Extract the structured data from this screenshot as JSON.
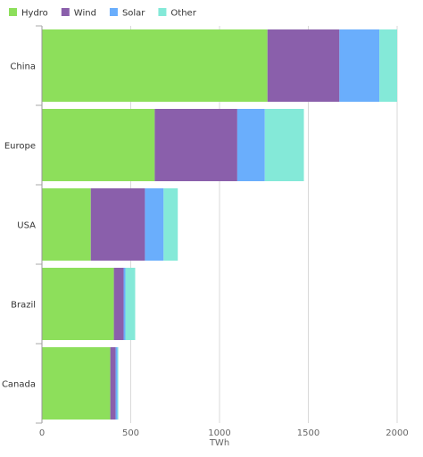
{
  "chart_data": {
    "type": "bar",
    "orientation": "horizontal",
    "stacked": true,
    "categories": [
      "China",
      "Europe",
      "USA",
      "Brazil",
      "Canada"
    ],
    "series": [
      {
        "name": "Hydro",
        "color": "#8ddf5b",
        "values": [
          1270,
          635,
          275,
          405,
          385
        ]
      },
      {
        "name": "Wind",
        "color": "#8a5fab",
        "values": [
          405,
          465,
          305,
          55,
          30
        ]
      },
      {
        "name": "Solar",
        "color": "#6aaefc",
        "values": [
          225,
          155,
          105,
          10,
          10
        ]
      },
      {
        "name": "Other",
        "color": "#84e9d8",
        "values": [
          100,
          220,
          80,
          55,
          5
        ]
      }
    ],
    "xlabel": "TWh",
    "ylabel": "",
    "xlim": [
      0,
      2000
    ],
    "xticks": [
      0,
      500,
      1000,
      1500,
      2000
    ],
    "grid": "vertical",
    "legend": "top-left"
  }
}
